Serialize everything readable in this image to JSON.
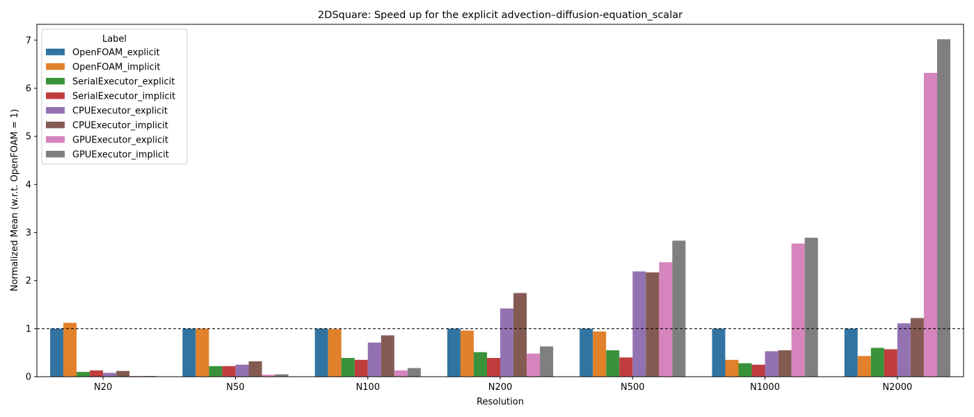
{
  "chart_data": {
    "type": "bar",
    "title": "2DSquare: Speed up for the explicit advection–diffusion-equation_scalar",
    "xlabel": "Resolution",
    "ylabel": "Normalized Mean (w.r.t. OpenFOAM = 1)",
    "ylim": [
      0,
      7.33
    ],
    "yticks": [
      0,
      1,
      2,
      3,
      4,
      5,
      6,
      7
    ],
    "grid": false,
    "reference_line": {
      "y": 1,
      "style": "dashed",
      "color": "#000000"
    },
    "legend": {
      "title": "Label",
      "placement": "top-left"
    },
    "categories": [
      "N20",
      "N50",
      "N100",
      "N200",
      "N500",
      "N1000",
      "N2000"
    ],
    "series": [
      {
        "name": "OpenFOAM_explicit",
        "color": "#3274a1",
        "values": [
          1.0,
          1.0,
          1.0,
          1.0,
          1.0,
          1.0,
          1.0
        ]
      },
      {
        "name": "OpenFOAM_implicit",
        "color": "#e1812c",
        "values": [
          1.12,
          1.0,
          0.99,
          0.96,
          0.94,
          0.35,
          0.43
        ]
      },
      {
        "name": "SerialExecutor_explicit",
        "color": "#3a923a",
        "values": [
          0.1,
          0.22,
          0.39,
          0.51,
          0.55,
          0.28,
          0.6
        ]
      },
      {
        "name": "SerialExecutor_implicit",
        "color": "#c03d3e",
        "values": [
          0.13,
          0.22,
          0.35,
          0.39,
          0.4,
          0.25,
          0.57
        ]
      },
      {
        "name": "CPUExecutor_explicit",
        "color": "#9372b2",
        "values": [
          0.08,
          0.25,
          0.71,
          1.42,
          2.19,
          0.53,
          1.11
        ]
      },
      {
        "name": "CPUExecutor_implicit",
        "color": "#845b53",
        "values": [
          0.12,
          0.32,
          0.86,
          1.74,
          2.17,
          0.55,
          1.22
        ]
      },
      {
        "name": "GPUExecutor_explicit",
        "color": "#d684bd",
        "values": [
          0.015,
          0.04,
          0.13,
          0.48,
          2.38,
          2.77,
          6.32
        ]
      },
      {
        "name": "GPUExecutor_implicit",
        "color": "#7f7f7f",
        "values": [
          0.015,
          0.05,
          0.18,
          0.63,
          2.83,
          2.89,
          7.02
        ]
      }
    ]
  }
}
